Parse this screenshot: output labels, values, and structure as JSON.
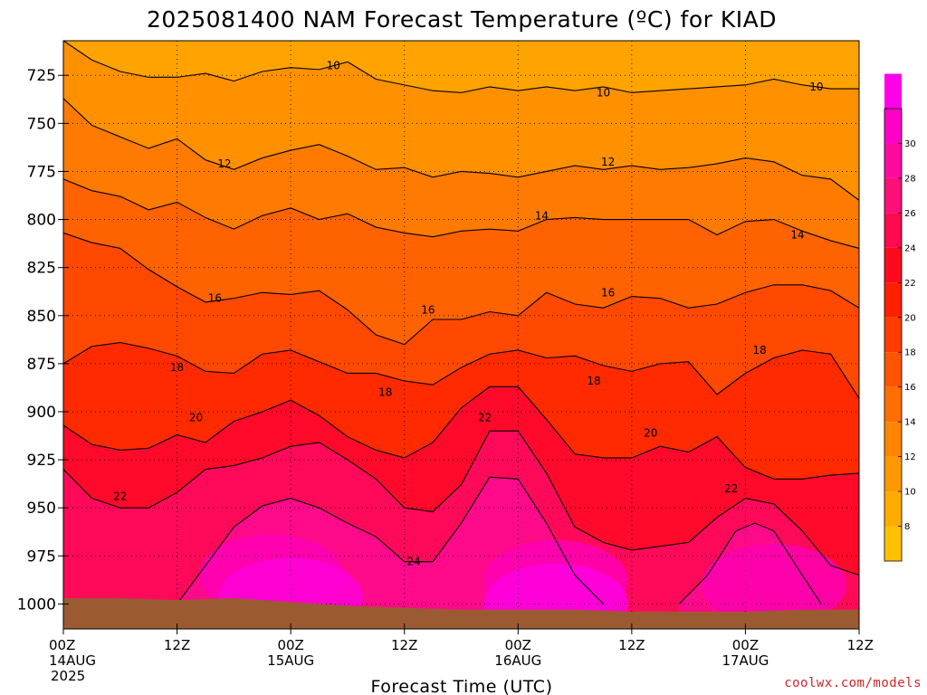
{
  "colors": {
    "terrain": "#9c5a32",
    "contour_line": "#000000",
    "credit": "#d2232a",
    "levels": [
      "#ffc000",
      "#ffac00",
      "#ff9900",
      "#ff8500",
      "#ff6e00",
      "#ff5500",
      "#ff3c00",
      "#ff2000",
      "#ff0a1e",
      "#ff0a4e",
      "#ff0f78",
      "#ff0aa0",
      "#ff00c8",
      "#ff00e8"
    ]
  },
  "chart_data": {
    "type": "heatmap",
    "title": "2025081400 NAM Forecast Temperature (ºC) for KIAD",
    "xlabel": "Forecast Time (UTC)",
    "ylabel": "",
    "y_ticks": [
      "725",
      "750",
      "775",
      "800",
      "825",
      "850",
      "875",
      "900",
      "925",
      "950",
      "975",
      "1000"
    ],
    "y_tick_values": [
      725,
      750,
      775,
      800,
      825,
      850,
      875,
      900,
      925,
      950,
      975,
      1000
    ],
    "ylim_pressure_hPa": [
      707,
      1013
    ],
    "xlim_forecast_hour": [
      0,
      84
    ],
    "x_ticks": [
      {
        "hour": 0,
        "label": "00Z",
        "date": "14AUG",
        "year": "2025"
      },
      {
        "hour": 12,
        "label": "12Z",
        "date": "",
        "year": ""
      },
      {
        "hour": 24,
        "label": "00Z",
        "date": "15AUG",
        "year": ""
      },
      {
        "hour": 36,
        "label": "12Z",
        "date": "",
        "year": ""
      },
      {
        "hour": 48,
        "label": "00Z",
        "date": "16AUG",
        "year": ""
      },
      {
        "hour": 60,
        "label": "12Z",
        "date": "",
        "year": ""
      },
      {
        "hour": 72,
        "label": "00Z",
        "date": "17AUG",
        "year": ""
      },
      {
        "hour": 84,
        "label": "12Z",
        "date": "",
        "year": ""
      }
    ],
    "grid": true,
    "colorbar_ticks": [
      "8",
      "10",
      "12",
      "14",
      "16",
      "18",
      "20",
      "22",
      "24",
      "26",
      "28",
      "30"
    ],
    "colorbar_values": [
      8,
      10,
      12,
      14,
      16,
      18,
      20,
      22,
      24,
      26,
      28,
      30
    ],
    "colorbar_range": [
      6,
      32
    ],
    "contours": [
      {
        "level": 10,
        "points": [
          [
            0,
            707
          ],
          [
            3,
            717
          ],
          [
            6,
            723
          ],
          [
            9,
            726
          ],
          [
            12,
            726
          ],
          [
            15,
            724
          ],
          [
            18,
            728
          ],
          [
            21,
            723
          ],
          [
            24,
            721
          ],
          [
            27,
            722
          ],
          [
            30,
            718
          ],
          [
            33,
            727
          ],
          [
            36,
            730
          ],
          [
            39,
            733
          ],
          [
            42,
            734
          ],
          [
            45,
            731
          ],
          [
            48,
            733
          ],
          [
            51,
            731
          ],
          [
            54,
            733
          ],
          [
            57,
            731
          ],
          [
            60,
            734
          ],
          [
            63,
            733
          ],
          [
            66,
            732
          ],
          [
            69,
            731
          ],
          [
            72,
            730
          ],
          [
            75,
            727
          ],
          [
            78,
            730
          ],
          [
            81,
            732
          ],
          [
            84,
            732
          ]
        ]
      },
      {
        "level": 12,
        "points": [
          [
            0,
            737
          ],
          [
            3,
            751
          ],
          [
            6,
            757
          ],
          [
            9,
            763
          ],
          [
            12,
            758
          ],
          [
            15,
            769
          ],
          [
            18,
            774
          ],
          [
            21,
            768
          ],
          [
            24,
            764
          ],
          [
            27,
            761
          ],
          [
            30,
            767
          ],
          [
            33,
            774
          ],
          [
            36,
            773
          ],
          [
            39,
            778
          ],
          [
            42,
            775
          ],
          [
            45,
            776
          ],
          [
            48,
            778
          ],
          [
            51,
            775
          ],
          [
            54,
            772
          ],
          [
            57,
            774
          ],
          [
            60,
            772
          ],
          [
            63,
            774
          ],
          [
            66,
            773
          ],
          [
            69,
            771
          ],
          [
            72,
            768
          ],
          [
            75,
            770
          ],
          [
            78,
            777
          ],
          [
            81,
            779
          ],
          [
            84,
            790
          ]
        ]
      },
      {
        "level": 14,
        "points": [
          [
            0,
            779
          ],
          [
            3,
            785
          ],
          [
            6,
            788
          ],
          [
            9,
            795
          ],
          [
            12,
            791
          ],
          [
            15,
            799
          ],
          [
            18,
            805
          ],
          [
            21,
            798
          ],
          [
            24,
            794
          ],
          [
            27,
            800
          ],
          [
            30,
            797
          ],
          [
            33,
            804
          ],
          [
            36,
            807
          ],
          [
            39,
            809
          ],
          [
            42,
            806
          ],
          [
            45,
            805
          ],
          [
            48,
            806
          ],
          [
            51,
            800
          ],
          [
            54,
            799
          ],
          [
            57,
            800
          ],
          [
            60,
            800
          ],
          [
            63,
            800
          ],
          [
            66,
            800
          ],
          [
            69,
            808
          ],
          [
            72,
            801
          ],
          [
            75,
            800
          ],
          [
            78,
            806
          ],
          [
            81,
            811
          ],
          [
            84,
            815
          ]
        ]
      },
      {
        "level": 16,
        "points": [
          [
            0,
            807
          ],
          [
            3,
            812
          ],
          [
            6,
            815
          ],
          [
            9,
            826
          ],
          [
            12,
            835
          ],
          [
            15,
            843
          ],
          [
            18,
            841
          ],
          [
            21,
            838
          ],
          [
            24,
            839
          ],
          [
            27,
            837
          ],
          [
            30,
            847
          ],
          [
            33,
            860
          ],
          [
            36,
            865
          ],
          [
            39,
            852
          ],
          [
            42,
            852
          ],
          [
            45,
            848
          ],
          [
            48,
            850
          ],
          [
            51,
            838
          ],
          [
            54,
            844
          ],
          [
            57,
            846
          ],
          [
            60,
            840
          ],
          [
            63,
            841
          ],
          [
            66,
            846
          ],
          [
            69,
            844
          ],
          [
            72,
            838
          ],
          [
            75,
            834
          ],
          [
            78,
            834
          ],
          [
            81,
            837
          ],
          [
            84,
            846
          ]
        ]
      },
      {
        "level": 18,
        "points": [
          [
            0,
            875
          ],
          [
            3,
            866
          ],
          [
            6,
            864
          ],
          [
            9,
            867
          ],
          [
            12,
            871
          ],
          [
            15,
            879
          ],
          [
            18,
            880
          ],
          [
            21,
            870
          ],
          [
            24,
            868
          ],
          [
            27,
            874
          ],
          [
            30,
            880
          ],
          [
            33,
            880
          ],
          [
            36,
            884
          ],
          [
            39,
            886
          ],
          [
            42,
            877
          ],
          [
            45,
            870
          ],
          [
            48,
            868
          ],
          [
            51,
            872
          ],
          [
            54,
            871
          ],
          [
            57,
            876
          ],
          [
            60,
            879
          ],
          [
            63,
            875
          ],
          [
            66,
            874
          ],
          [
            69,
            891
          ],
          [
            72,
            880
          ],
          [
            75,
            872
          ],
          [
            78,
            868
          ],
          [
            81,
            870
          ],
          [
            84,
            893
          ]
        ]
      },
      {
        "level": 20,
        "points": [
          [
            0,
            907
          ],
          [
            3,
            917
          ],
          [
            6,
            920
          ],
          [
            9,
            919
          ],
          [
            12,
            912
          ],
          [
            15,
            916
          ],
          [
            18,
            905
          ],
          [
            21,
            900
          ],
          [
            24,
            894
          ],
          [
            27,
            902
          ],
          [
            30,
            913
          ],
          [
            33,
            920
          ],
          [
            36,
            924
          ],
          [
            39,
            916
          ],
          [
            42,
            898
          ],
          [
            45,
            887
          ],
          [
            48,
            887
          ],
          [
            51,
            904
          ],
          [
            54,
            922
          ],
          [
            57,
            924
          ],
          [
            60,
            924
          ],
          [
            63,
            918
          ],
          [
            66,
            921
          ],
          [
            69,
            913
          ],
          [
            72,
            929
          ],
          [
            75,
            935
          ],
          [
            78,
            935
          ],
          [
            81,
            933
          ],
          [
            84,
            932
          ]
        ]
      },
      {
        "level": 22,
        "points": [
          [
            0,
            930
          ],
          [
            3,
            945
          ],
          [
            6,
            950
          ],
          [
            9,
            950
          ],
          [
            12,
            942
          ],
          [
            15,
            930
          ],
          [
            18,
            928
          ],
          [
            21,
            924
          ],
          [
            24,
            918
          ],
          [
            27,
            916
          ],
          [
            30,
            925
          ],
          [
            33,
            935
          ],
          [
            36,
            950
          ],
          [
            39,
            952
          ],
          [
            42,
            938
          ],
          [
            45,
            910
          ],
          [
            48,
            910
          ],
          [
            51,
            932
          ],
          [
            54,
            960
          ],
          [
            57,
            968
          ],
          [
            60,
            972
          ],
          [
            63,
            970
          ],
          [
            66,
            968
          ],
          [
            69,
            955
          ],
          [
            72,
            945
          ],
          [
            75,
            948
          ],
          [
            78,
            962
          ],
          [
            81,
            980
          ],
          [
            84,
            985
          ]
        ]
      },
      {
        "level": 24,
        "points": [
          [
            12,
            1000
          ],
          [
            15,
            980
          ],
          [
            18,
            960
          ],
          [
            21,
            949
          ],
          [
            24,
            945
          ],
          [
            27,
            950
          ],
          [
            30,
            958
          ],
          [
            33,
            965
          ],
          [
            36,
            978
          ],
          [
            39,
            978
          ],
          [
            42,
            958
          ],
          [
            45,
            934
          ],
          [
            48,
            935
          ],
          [
            51,
            958
          ],
          [
            54,
            985
          ],
          [
            57,
            1000
          ]
        ]
      },
      {
        "level": 24,
        "points": [
          [
            65,
            1000
          ],
          [
            68,
            985
          ],
          [
            71,
            962
          ],
          [
            73,
            958
          ],
          [
            75,
            962
          ],
          [
            78,
            985
          ],
          [
            80,
            1000
          ]
        ]
      }
    ],
    "contour_labels": [
      {
        "value": "10",
        "x": 28.5,
        "y": 720
      },
      {
        "value": "10",
        "x": 57,
        "y": 734
      },
      {
        "value": "10",
        "x": 79.5,
        "y": 731
      },
      {
        "value": "12",
        "x": 17,
        "y": 771
      },
      {
        "value": "12",
        "x": 57.5,
        "y": 770
      },
      {
        "value": "14",
        "x": 50.5,
        "y": 798
      },
      {
        "value": "14",
        "x": 77.5,
        "y": 808
      },
      {
        "value": "16",
        "x": 16,
        "y": 841
      },
      {
        "value": "16",
        "x": 38.5,
        "y": 847
      },
      {
        "value": "16",
        "x": 57.5,
        "y": 838
      },
      {
        "value": "18",
        "x": 12,
        "y": 877
      },
      {
        "value": "18",
        "x": 34,
        "y": 890
      },
      {
        "value": "18",
        "x": 56,
        "y": 884
      },
      {
        "value": "18",
        "x": 73.5,
        "y": 868
      },
      {
        "value": "20",
        "x": 14,
        "y": 903
      },
      {
        "value": "20",
        "x": 62,
        "y": 911
      },
      {
        "value": "22",
        "x": 6,
        "y": 944
      },
      {
        "value": "22",
        "x": 44.5,
        "y": 903
      },
      {
        "value": "22",
        "x": 70.5,
        "y": 940
      },
      {
        "value": "24",
        "x": 37,
        "y": 978
      }
    ],
    "surface_pressure": [
      [
        0,
        997
      ],
      [
        6,
        997
      ],
      [
        12,
        998
      ],
      [
        18,
        997
      ],
      [
        24,
        999
      ],
      [
        30,
        1001
      ],
      [
        36,
        1002
      ],
      [
        42,
        1003
      ],
      [
        48,
        1003
      ],
      [
        54,
        1003
      ],
      [
        60,
        1004
      ],
      [
        66,
        1004
      ],
      [
        72,
        1004
      ],
      [
        78,
        1003
      ],
      [
        84,
        1003
      ]
    ]
  },
  "credit": "coolwx.com/models"
}
